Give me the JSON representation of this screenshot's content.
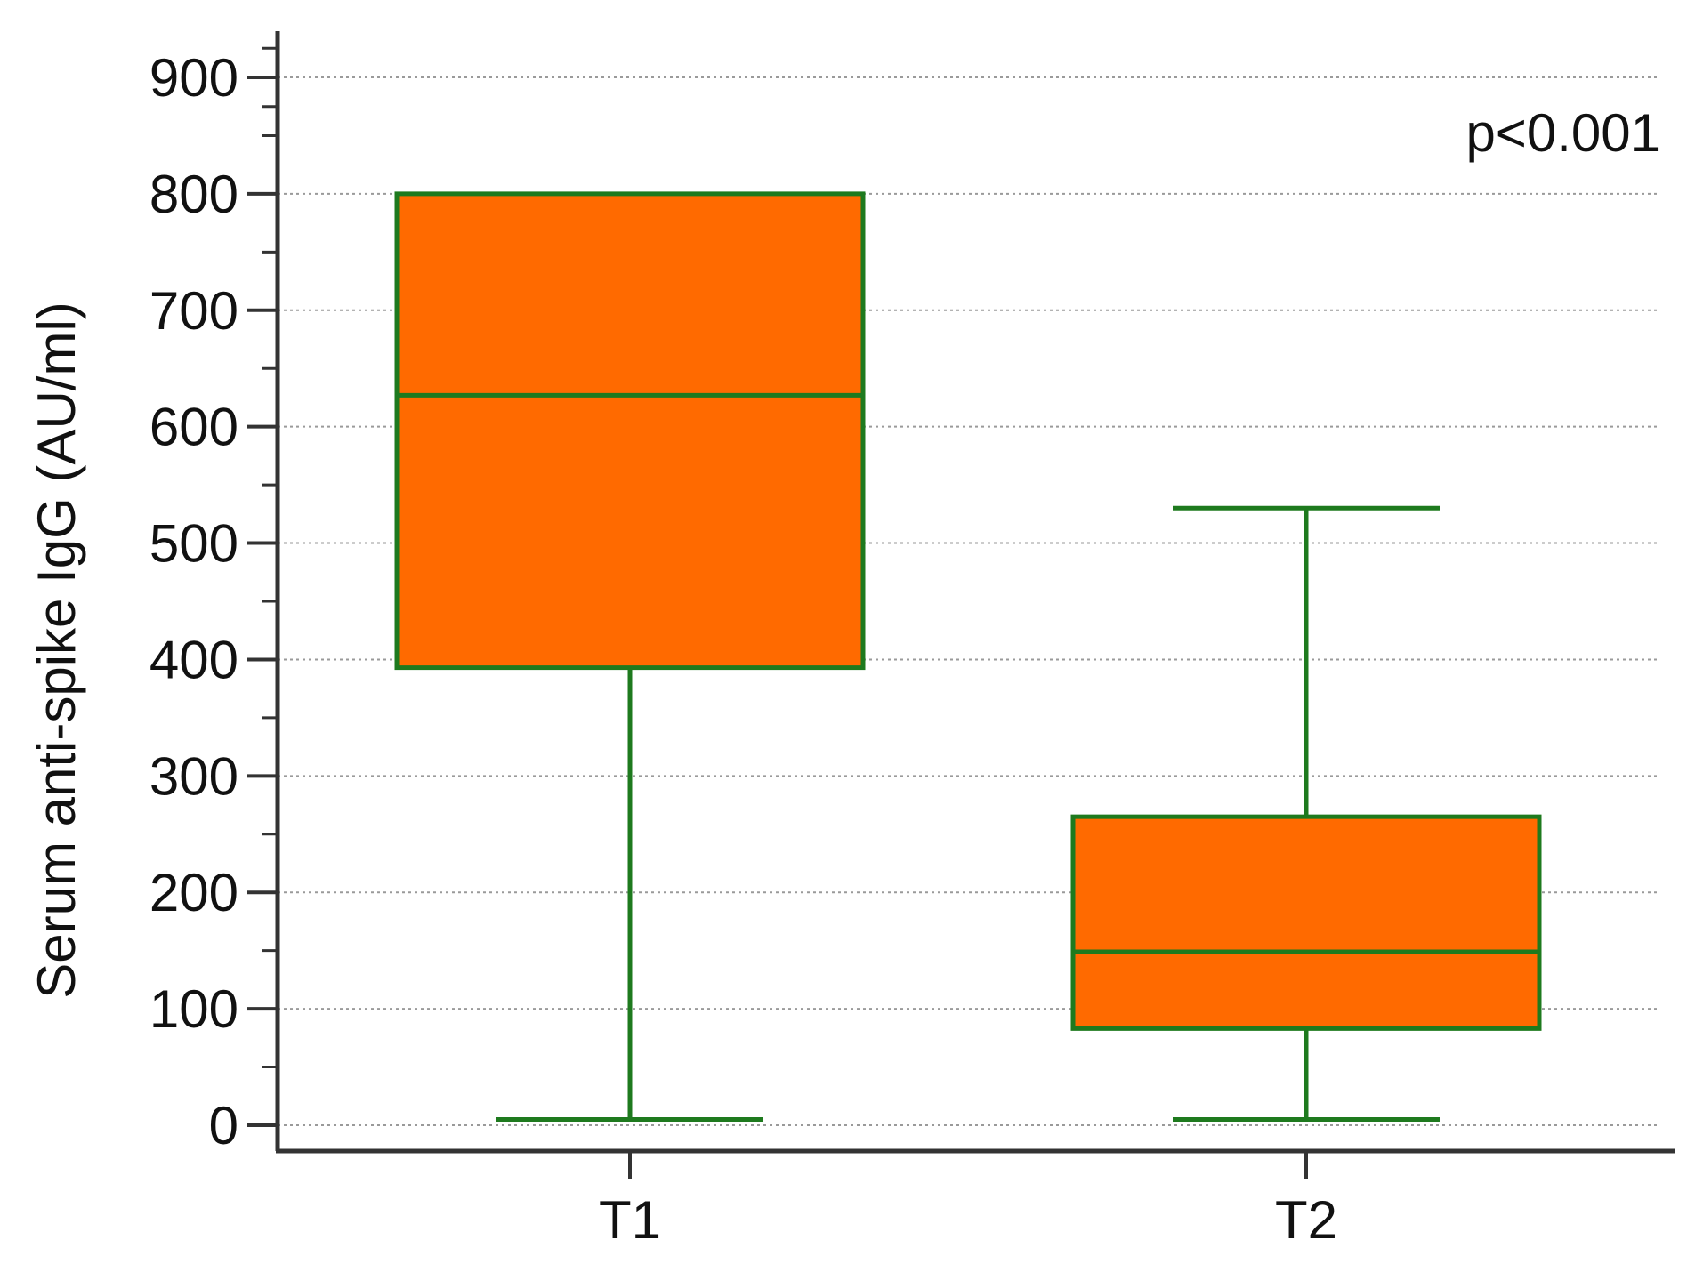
{
  "chart_data": {
    "type": "box",
    "title": "",
    "xlabel": "",
    "ylabel": "Serum anti-spike IgG (AU/ml)",
    "ylim": [
      -50,
      950
    ],
    "yticks": [
      0,
      100,
      200,
      300,
      400,
      500,
      600,
      700,
      800,
      900
    ],
    "ytick_labels": [
      "0",
      "100",
      "200",
      "300",
      "400",
      "500",
      "600",
      "700",
      "800",
      "900"
    ],
    "minor_tick_step": 50,
    "grid": "horizontal dotted at major ticks",
    "categories": [
      "T1",
      "T2"
    ],
    "boxes": [
      {
        "category": "T1",
        "whisker_low": 5,
        "q1": 393,
        "median": 627,
        "q3": 800,
        "whisker_high": 800
      },
      {
        "category": "T2",
        "whisker_low": 5,
        "q1": 83,
        "median": 149,
        "q3": 265,
        "whisker_high": 530
      }
    ],
    "annotation": "p<0.001",
    "annotation_position": "top-right",
    "colors": {
      "box_fill": "#FF6A00",
      "box_stroke": "#1E7A1E",
      "axis": "#333333",
      "grid": "#9a9a9a"
    }
  }
}
